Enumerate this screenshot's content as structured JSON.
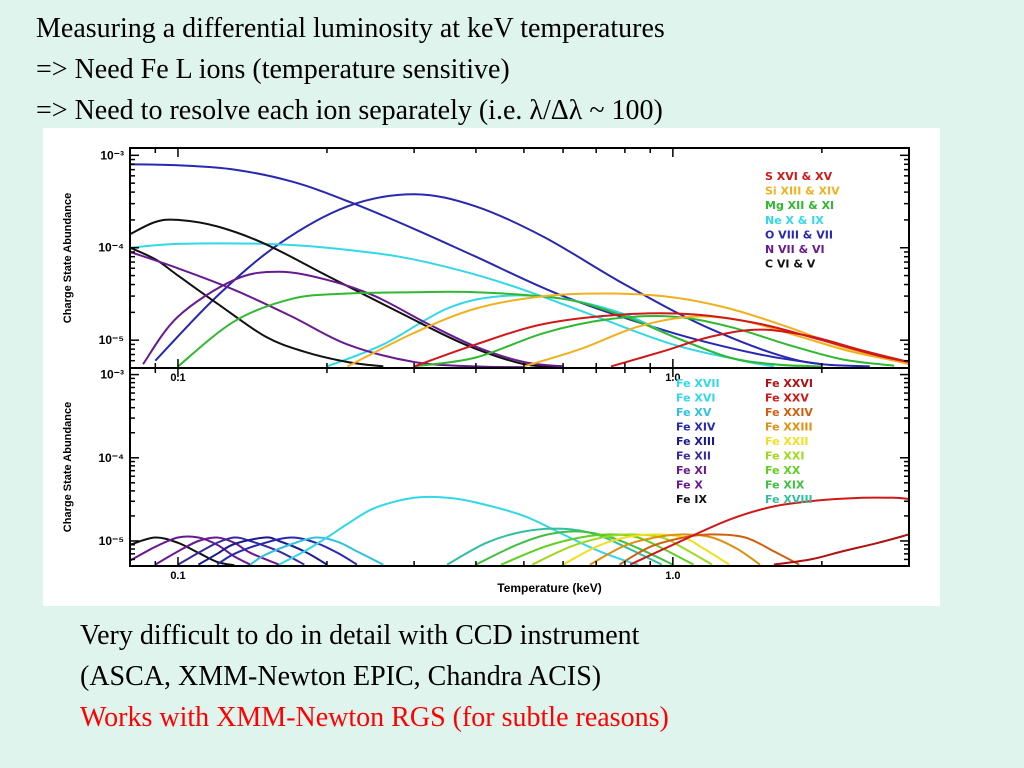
{
  "slide": {
    "title_lines": [
      "Measuring a differential luminosity at keV temperatures",
      "=> Need Fe L ions (temperature sensitive)",
      "=> Need to resolve each ion separately (i.e. λ/Δλ ~ 100)"
    ],
    "notes": [
      "Very difficult to do in detail with CCD instrument",
      "(ASCA, XMM-Newton EPIC, Chandra ACIS)"
    ],
    "highlight_note": "Works with XMM-Newton RGS (for subtle reasons)",
    "highlight_color": "#ff0000",
    "background": "#e0f4ee"
  },
  "chart_data": [
    {
      "type": "line",
      "xscale": "log",
      "yscale": "log",
      "xlim": [
        0.08,
        3.0
      ],
      "ylim": [
        5e-06,
        0.0012
      ],
      "ylabel": "Charge State Abundance",
      "xlabel": "",
      "x_tick_labels": [
        {
          "x": 0.1,
          "label": "0.1"
        },
        {
          "x": 1.0,
          "label": "1.0"
        }
      ],
      "y_tick_labels": [
        {
          "y": 0.001,
          "label": "10⁻³"
        },
        {
          "y": 0.0001,
          "label": "10⁻⁴"
        },
        {
          "y": 1e-05,
          "label": "10⁻⁵"
        }
      ],
      "legend": {
        "placement": "top-right",
        "entries": [
          {
            "label": "S XVI & XV",
            "color": "#d01818"
          },
          {
            "label": "Si XIII & XIV",
            "color": "#f0b020"
          },
          {
            "label": "Mg XII & XI",
            "color": "#30b830"
          },
          {
            "label": "Ne X & IX",
            "color": "#30d8e8"
          },
          {
            "label": "O VIII & VII",
            "color": "#2828b0"
          },
          {
            "label": "N VII & VI",
            "color": "#6a1a90"
          },
          {
            "label": "C VI & V",
            "color": "#111111"
          }
        ]
      },
      "series": [
        {
          "color": "#2828b0",
          "x": [
            0.08,
            0.1,
            0.13,
            0.17,
            0.22,
            0.3,
            0.4,
            0.6,
            1.0,
            1.5,
            2.0
          ],
          "y": [
            0.0008,
            0.00078,
            0.0007,
            0.00052,
            0.00032,
            0.00016,
            8e-05,
            3e-05,
            1.2e-05,
            7e-06,
            5.5e-06
          ]
        },
        {
          "color": "#2828b0",
          "x": [
            0.09,
            0.12,
            0.16,
            0.22,
            0.3,
            0.4,
            0.55,
            0.8,
            1.2,
            1.8,
            2.5
          ],
          "y": [
            6e-06,
            3e-05,
            0.00011,
            0.00028,
            0.00038,
            0.00028,
            0.00013,
            4e-05,
            1.3e-05,
            6e-06,
            5.2e-06
          ]
        },
        {
          "color": "#30d8e8",
          "x": [
            0.08,
            0.1,
            0.15,
            0.2,
            0.28,
            0.38,
            0.5,
            0.7,
            1.0,
            1.4,
            1.8
          ],
          "y": [
            0.0001,
            0.00011,
            0.00011,
            0.0001,
            8e-05,
            5.5e-05,
            3.5e-05,
            1.8e-05,
            9e-06,
            6e-06,
            5.2e-06
          ]
        },
        {
          "color": "#30d8e8",
          "x": [
            0.2,
            0.26,
            0.35,
            0.45,
            0.6,
            0.8,
            1.0,
            1.3,
            1.6
          ],
          "y": [
            5.2e-06,
            9e-06,
            2.2e-05,
            3e-05,
            2.8e-05,
            1.9e-05,
            1.1e-05,
            6.5e-06,
            5.2e-06
          ]
        },
        {
          "color": "#111111",
          "x": [
            0.08,
            0.09,
            0.1,
            0.12,
            0.15,
            0.2,
            0.28,
            0.38,
            0.5,
            0.6
          ],
          "y": [
            0.00014,
            0.00019,
            0.0002,
            0.00017,
            0.00011,
            5e-05,
            2e-05,
            9e-06,
            5.5e-06,
            5.2e-06
          ]
        },
        {
          "color": "#111111",
          "x": [
            0.08,
            0.09,
            0.1,
            0.12,
            0.15,
            0.18,
            0.22,
            0.26
          ],
          "y": [
            0.0001,
            7.5e-05,
            5e-05,
            2.5e-05,
            1.1e-05,
            7.5e-06,
            5.8e-06,
            5.2e-06
          ]
        },
        {
          "color": "#6a1a90",
          "x": [
            0.08,
            0.1,
            0.13,
            0.17,
            0.22,
            0.3,
            0.4,
            0.5
          ],
          "y": [
            9e-05,
            6e-05,
            3.5e-05,
            1.8e-05,
            9e-06,
            5.8e-06,
            5.2e-06,
            5.1e-06
          ]
        },
        {
          "color": "#6a1a90",
          "x": [
            0.085,
            0.1,
            0.13,
            0.16,
            0.2,
            0.25,
            0.32,
            0.4,
            0.5,
            0.6
          ],
          "y": [
            5.5e-06,
            1.8e-05,
            4.5e-05,
            5.5e-05,
            4.5e-05,
            3e-05,
            1.5e-05,
            8.5e-06,
            5.8e-06,
            5.2e-06
          ]
        },
        {
          "color": "#30b830",
          "x": [
            0.1,
            0.13,
            0.17,
            0.22,
            0.3,
            0.4,
            0.6,
            0.8,
            1.0,
            1.3,
            1.6,
            2.0
          ],
          "y": [
            5.2e-06,
            1.6e-05,
            2.8e-05,
            3.2e-05,
            3.3e-05,
            3.3e-05,
            2.8e-05,
            1.8e-05,
            1.1e-05,
            6.5e-06,
            5.5e-06,
            5.2e-06
          ]
        },
        {
          "color": "#30b830",
          "x": [
            0.3,
            0.4,
            0.55,
            0.75,
            1.0,
            1.3,
            1.7,
            2.2,
            2.8
          ],
          "y": [
            5.2e-06,
            6.5e-06,
            1.2e-05,
            1.7e-05,
            1.8e-05,
            1.4e-05,
            9e-06,
            6.2e-06,
            5.3e-06
          ]
        },
        {
          "color": "#f0b020",
          "x": [
            0.22,
            0.3,
            0.4,
            0.55,
            0.75,
            1.0,
            1.3,
            1.7,
            2.2,
            3.0
          ],
          "y": [
            5.2e-06,
            1.2e-05,
            2.2e-05,
            3e-05,
            3.2e-05,
            2.9e-05,
            2.2e-05,
            1.4e-05,
            8.5e-06,
            5.5e-06
          ]
        },
        {
          "color": "#f0b020",
          "x": [
            0.5,
            0.65,
            0.85,
            1.1,
            1.4,
            1.8,
            2.3,
            3.0
          ],
          "y": [
            5.2e-06,
            8e-06,
            1.4e-05,
            1.8e-05,
            1.6e-05,
            1.1e-05,
            7.5e-06,
            5.6e-06
          ]
        },
        {
          "color": "#d01818",
          "x": [
            0.3,
            0.4,
            0.55,
            0.8,
            1.1,
            1.5,
            2.0,
            2.6,
            3.0
          ],
          "y": [
            5.2e-06,
            9e-06,
            1.5e-05,
            1.9e-05,
            1.9e-05,
            1.5e-05,
            1e-05,
            6.8e-06,
            5.8e-06
          ]
        },
        {
          "color": "#d01818",
          "x": [
            0.75,
            0.95,
            1.2,
            1.5,
            1.9,
            2.4,
            3.0
          ],
          "y": [
            5.2e-06,
            7.5e-06,
            1.1e-05,
            1.3e-05,
            1.1e-05,
            7.8e-06,
            5.8e-06
          ]
        }
      ]
    },
    {
      "type": "line",
      "xscale": "log",
      "yscale": "log",
      "xlim": [
        0.08,
        3.0
      ],
      "ylim": [
        5e-06,
        0.0012
      ],
      "ylabel": "Charge State Abundance",
      "xlabel": "Temperature (keV)",
      "x_tick_labels": [
        {
          "x": 0.1,
          "label": "0.1"
        },
        {
          "x": 1.0,
          "label": "1.0"
        }
      ],
      "y_tick_labels": [
        {
          "y": 0.001,
          "label": "10⁻³"
        },
        {
          "y": 0.0001,
          "label": "10⁻⁴"
        },
        {
          "y": 1e-05,
          "label": "10⁻⁵"
        }
      ],
      "legend": {
        "placement": "top-right",
        "entries": [
          {
            "label": "Fe XVII",
            "color": "#30d8e8"
          },
          {
            "label": "Fe XVI",
            "color": "#30d8e8"
          },
          {
            "label": "Fe XV",
            "color": "#30c0e0"
          },
          {
            "label": "Fe XIV",
            "color": "#2828b0"
          },
          {
            "label": "Fe XIII",
            "color": "#1a1a90"
          },
          {
            "label": "Fe XII",
            "color": "#3a2aa0"
          },
          {
            "label": "Fe XI",
            "color": "#6a1a90"
          },
          {
            "label": "Fe X",
            "color": "#6a1a90"
          },
          {
            "label": "Fe IX",
            "color": "#111111"
          },
          {
            "label": "Fe XXVI",
            "color": "#b01010"
          },
          {
            "label": "Fe XXV",
            "color": "#d01818"
          },
          {
            "label": "Fe XXIV",
            "color": "#d06010"
          },
          {
            "label": "Fe XXIII",
            "color": "#e09010"
          },
          {
            "label": "Fe XXII",
            "color": "#f0e020"
          },
          {
            "label": "Fe XXI",
            "color": "#a0d820"
          },
          {
            "label": "Fe XX",
            "color": "#60d020"
          },
          {
            "label": "Fe XIX",
            "color": "#40c040"
          },
          {
            "label": "Fe XVIII",
            "color": "#30c0a0"
          }
        ]
      },
      "series": [
        {
          "color": "#111111",
          "x": [
            0.08,
            0.09,
            0.1,
            0.11,
            0.12,
            0.13
          ],
          "y": [
            9e-06,
            1.1e-05,
            9.5e-06,
            7.2e-06,
            5.6e-06,
            5.1e-06
          ]
        },
        {
          "color": "#6a1a90",
          "x": [
            0.08,
            0.09,
            0.1,
            0.11,
            0.12,
            0.13,
            0.14
          ],
          "y": [
            5.8e-06,
            8.5e-06,
            1.1e-05,
            1.1e-05,
            9e-06,
            6.5e-06,
            5.2e-06
          ]
        },
        {
          "color": "#6a1a90",
          "x": [
            0.09,
            0.1,
            0.11,
            0.12,
            0.13,
            0.14,
            0.16
          ],
          "y": [
            5.2e-06,
            7.5e-06,
            1e-05,
            1.1e-05,
            9.5e-06,
            7.2e-06,
            5.2e-06
          ]
        },
        {
          "color": "#3a2aa0",
          "x": [
            0.1,
            0.11,
            0.12,
            0.13,
            0.14,
            0.16,
            0.18
          ],
          "y": [
            5.2e-06,
            7.2e-06,
            9.5e-06,
            1.1e-05,
            1e-05,
            7.5e-06,
            5.2e-06
          ]
        },
        {
          "color": "#1a1a90",
          "x": [
            0.11,
            0.12,
            0.13,
            0.15,
            0.16,
            0.18,
            0.2
          ],
          "y": [
            5.2e-06,
            7e-06,
            9.2e-06,
            1.1e-05,
            1e-05,
            7.5e-06,
            5.2e-06
          ]
        },
        {
          "color": "#2828b0",
          "x": [
            0.12,
            0.13,
            0.15,
            0.17,
            0.19,
            0.21,
            0.23
          ],
          "y": [
            5.2e-06,
            7e-06,
            9.5e-06,
            1.1e-05,
            9.5e-06,
            7.2e-06,
            5.2e-06
          ]
        },
        {
          "color": "#30c0e0",
          "x": [
            0.14,
            0.15,
            0.17,
            0.19,
            0.21,
            0.23,
            0.26
          ],
          "y": [
            5.2e-06,
            6.8e-06,
            9.2e-06,
            1.1e-05,
            9.8e-06,
            7.5e-06,
            5.2e-06
          ]
        },
        {
          "color": "#30d8e8",
          "x": [
            0.16,
            0.18,
            0.2,
            0.22,
            0.25,
            0.3,
            0.35,
            0.4,
            0.5,
            0.6,
            0.7,
            0.8,
            0.85
          ],
          "y": [
            5.2e-06,
            7.5e-06,
            1.1e-05,
            1.6e-05,
            2.5e-05,
            3.3e-05,
            3.3e-05,
            2.9e-05,
            2e-05,
            1.2e-05,
            7.8e-06,
            5.8e-06,
            5.2e-06
          ]
        },
        {
          "color": "#30c0a0",
          "x": [
            0.35,
            0.42,
            0.5,
            0.6,
            0.7,
            0.8,
            0.95
          ],
          "y": [
            5.2e-06,
            9.5e-06,
            1.3e-05,
            1.4e-05,
            1.2e-05,
            8.5e-06,
            5.2e-06
          ]
        },
        {
          "color": "#40c040",
          "x": [
            0.4,
            0.48,
            0.56,
            0.65,
            0.75,
            0.85,
            1.0
          ],
          "y": [
            5.2e-06,
            8.8e-06,
            1.2e-05,
            1.3e-05,
            1.1e-05,
            8.2e-06,
            5.2e-06
          ]
        },
        {
          "color": "#60d020",
          "x": [
            0.45,
            0.55,
            0.65,
            0.75,
            0.85,
            0.95,
            1.1
          ],
          "y": [
            5.2e-06,
            8.5e-06,
            1.1e-05,
            1.2e-05,
            1.1e-05,
            8.2e-06,
            5.2e-06
          ]
        },
        {
          "color": "#a0d820",
          "x": [
            0.52,
            0.62,
            0.72,
            0.82,
            0.95,
            1.05,
            1.2
          ],
          "y": [
            5.2e-06,
            8.5e-06,
            1.1e-05,
            1.2e-05,
            1.1e-05,
            8.2e-06,
            5.2e-06
          ]
        },
        {
          "color": "#f0e020",
          "x": [
            0.6,
            0.7,
            0.8,
            0.92,
            1.05,
            1.15,
            1.3
          ],
          "y": [
            5.2e-06,
            8.5e-06,
            1.1e-05,
            1.2e-05,
            1.1e-05,
            8.2e-06,
            5.2e-06
          ]
        },
        {
          "color": "#e09010",
          "x": [
            0.68,
            0.8,
            0.92,
            1.05,
            1.2,
            1.35,
            1.5
          ],
          "y": [
            5.2e-06,
            8.8e-06,
            1.1e-05,
            1.2e-05,
            1.1e-05,
            8e-06,
            5.2e-06
          ]
        },
        {
          "color": "#d06010",
          "x": [
            0.78,
            0.9,
            1.05,
            1.2,
            1.4,
            1.6,
            1.8
          ],
          "y": [
            5.2e-06,
            8.5e-06,
            1.1e-05,
            1.2e-05,
            1.1e-05,
            7.5e-06,
            5.2e-06
          ]
        },
        {
          "color": "#d01818",
          "x": [
            0.82,
            1.0,
            1.3,
            1.6,
            2.0,
            2.4,
            2.8,
            3.0
          ],
          "y": [
            5.2e-06,
            9e-06,
            1.8e-05,
            2.6e-05,
            3.1e-05,
            3.3e-05,
            3.3e-05,
            3.2e-05
          ]
        },
        {
          "color": "#b01010",
          "x": [
            1.6,
            1.9,
            2.2,
            2.6,
            3.0
          ],
          "y": [
            5.2e-06,
            6e-06,
            7.5e-06,
            9.5e-06,
            1.2e-05
          ]
        }
      ]
    }
  ]
}
